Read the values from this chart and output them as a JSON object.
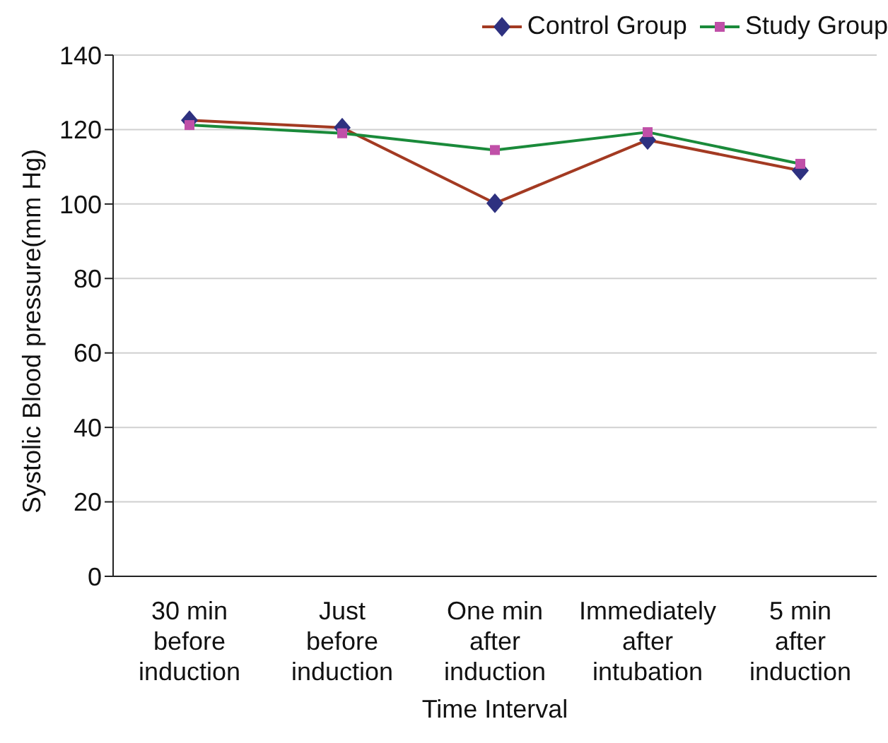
{
  "chart_data": {
    "type": "line",
    "xlabel": "Time Interval",
    "ylabel": "Systolic Blood pressure(mm Hg)",
    "categories": [
      "30 min before induction",
      "Just before induction",
      "One min after induction",
      "Immediately after intubation",
      "5 min after induction"
    ],
    "series": [
      {
        "name": "Control Group",
        "color": "#a33a22",
        "colors": [
          "#2e3180",
          "#2e3180",
          "#2e3180",
          "#2e3180",
          "#2e3180"
        ],
        "marker": "diamond",
        "values": [
          122.5,
          120.5,
          100.2,
          117.2,
          109
        ]
      },
      {
        "name": "Study Group",
        "color": "#1a8a3a",
        "colors": [
          "#c050a8",
          "#c050a8",
          "#c050a8",
          "#c050a8",
          "#c050a8"
        ],
        "marker": "square",
        "values": [
          121.2,
          119,
          114.5,
          119.3,
          110.8
        ]
      }
    ],
    "ylim": [
      0,
      140
    ],
    "yticks": [
      0,
      20,
      40,
      60,
      80,
      100,
      120,
      140
    ],
    "grid": "y",
    "legend": "top right"
  }
}
